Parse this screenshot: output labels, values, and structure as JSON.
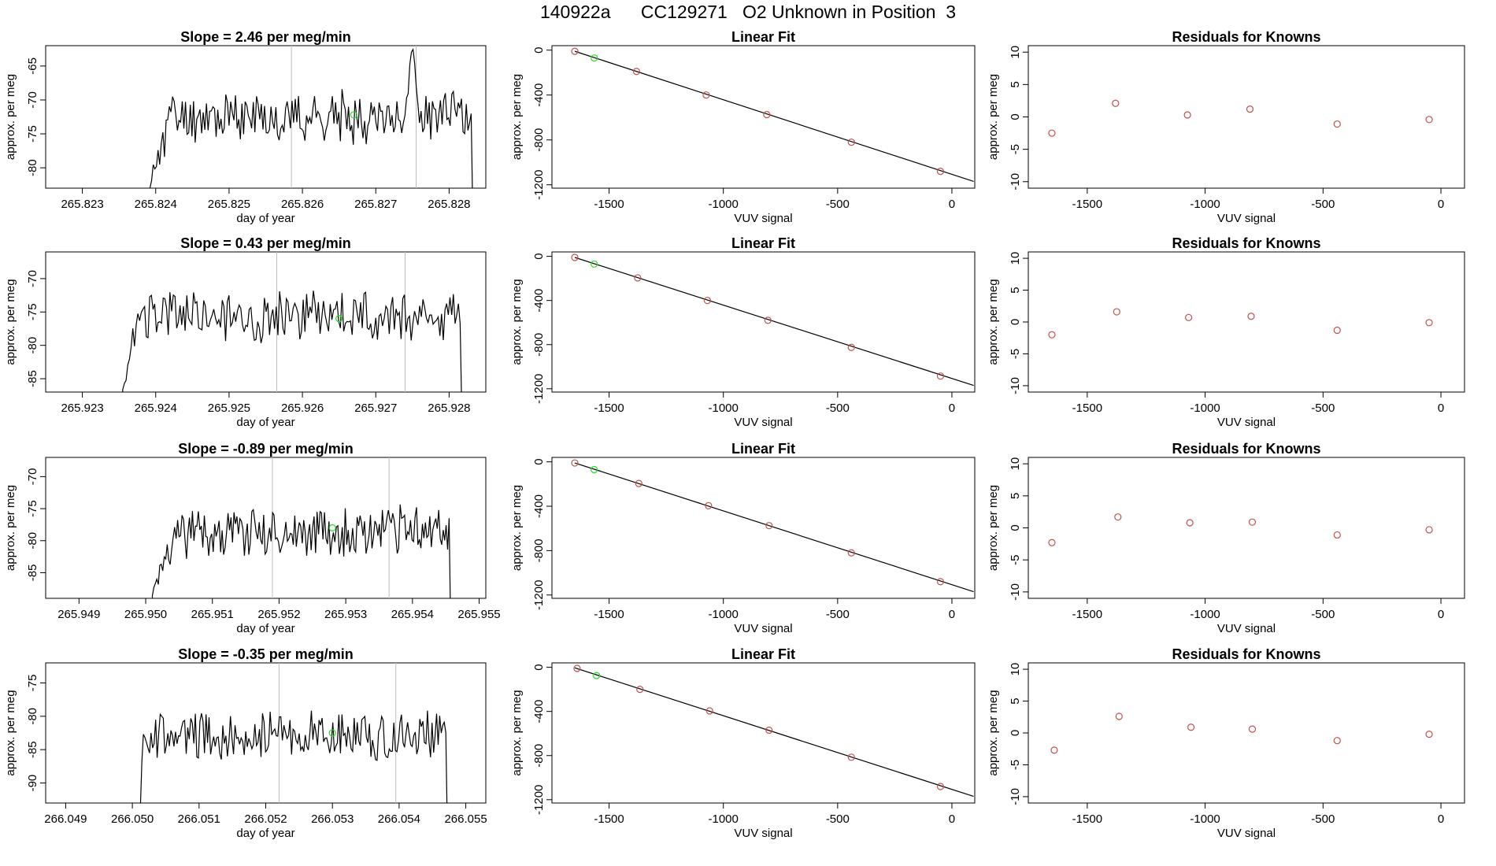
{
  "page": {
    "title_run": "140922a",
    "title_id": "CC129271",
    "title_desc": "O2 Unknown in Position  3"
  },
  "colors": {
    "line": "#000000",
    "guide": "#bdbdbd",
    "green": "#22dd22",
    "red": "#c0504d",
    "axis": "#000000"
  },
  "chart_data": [
    {
      "type": "line",
      "row": 1,
      "panel": "time_series",
      "title": "Slope =  2.46  per meg/min",
      "xlabel": "day of year",
      "ylabel": "approx. per meg",
      "xlim": [
        265.8225,
        265.8285
      ],
      "ylim": [
        -83,
        -62
      ],
      "xticks": [
        265.823,
        265.824,
        265.825,
        265.826,
        265.827,
        265.828
      ],
      "xtick_labels": [
        "265.823",
        "265.824",
        "265.825",
        "265.826",
        "265.827",
        "265.828"
      ],
      "yticks": [
        -80,
        -75,
        -70,
        -65
      ],
      "ytick_labels": [
        "-80",
        "-75",
        "-70",
        "-65"
      ],
      "vlines": [
        265.82585,
        265.82755
      ],
      "x_start": 265.8239,
      "x_end": 265.8283,
      "ramp_points": 14,
      "base": -72.5,
      "amp": 3.2,
      "seed": 11,
      "peak": {
        "x": 265.8275,
        "y": -62
      },
      "marker": {
        "x": 265.8267,
        "y": -72.2
      }
    },
    {
      "type": "scatter",
      "row": 1,
      "panel": "linear_fit",
      "title": "Linear Fit",
      "xlabel": "VUV signal",
      "ylabel": "approx. per meg",
      "xlim": [
        -1750,
        100
      ],
      "ylim": [
        -1230,
        40
      ],
      "xticks": [
        -1500,
        -1000,
        -500,
        0
      ],
      "xtick_labels": [
        "-1500",
        "-1000",
        "-500",
        "0"
      ],
      "yticks": [
        0,
        -400,
        -800,
        -1200
      ],
      "ytick_labels": [
        "0",
        "-400",
        "-800",
        "-1200"
      ],
      "known_x": [
        -1650,
        -1380,
        -1075,
        -810,
        -440,
        -50
      ],
      "known_y": [
        -10,
        -190,
        -400,
        -575,
        -820,
        -1080
      ],
      "unknown_x": [
        -1565
      ],
      "unknown_y": [
        -70
      ],
      "fit_line": {
        "x": [
          -1650,
          95
        ],
        "y": [
          -10,
          -1170
        ]
      }
    },
    {
      "type": "scatter",
      "row": 1,
      "panel": "residuals",
      "title": "Residuals for Knowns",
      "xlabel": "VUV signal",
      "ylabel": "approx. per meg",
      "xlim": [
        -1750,
        100
      ],
      "ylim": [
        -11,
        11
      ],
      "xticks": [
        -1500,
        -1000,
        -500,
        0
      ],
      "xtick_labels": [
        "-1500",
        "-1000",
        "-500",
        "0"
      ],
      "yticks": [
        10,
        5,
        0,
        -5,
        -10
      ],
      "ytick_labels": [
        "10",
        "5",
        "0",
        "-5",
        "-10"
      ],
      "x": [
        -1650,
        -1380,
        -1075,
        -810,
        -440,
        -50
      ],
      "y": [
        -2.5,
        2.1,
        0.3,
        1.2,
        -1.1,
        -0.4
      ]
    },
    {
      "type": "line",
      "row": 2,
      "panel": "time_series",
      "title": "Slope =  0.43  per meg/min",
      "xlabel": "day of year",
      "ylabel": "approx. per meg",
      "xlim": [
        265.9225,
        265.9285
      ],
      "ylim": [
        -87,
        -66
      ],
      "xticks": [
        265.923,
        265.924,
        265.925,
        265.926,
        265.927,
        265.928
      ],
      "xtick_labels": [
        "265.923",
        "265.924",
        "265.925",
        "265.926",
        "265.927",
        "265.928"
      ],
      "yticks": [
        -85,
        -80,
        -75,
        -70
      ],
      "ytick_labels": [
        "-85",
        "-80",
        "-75",
        "-70"
      ],
      "vlines": [
        265.92565,
        265.9274
      ],
      "x_start": 265.92355,
      "x_end": 265.92815,
      "ramp_points": 10,
      "base": -75.5,
      "amp": 3.4,
      "seed": 23,
      "peak": null,
      "marker": {
        "x": 265.9265,
        "y": -76
      }
    },
    {
      "type": "scatter",
      "row": 2,
      "panel": "linear_fit",
      "title": "Linear Fit",
      "xlabel": "VUV signal",
      "ylabel": "approx. per meg",
      "xlim": [
        -1750,
        100
      ],
      "ylim": [
        -1230,
        40
      ],
      "xticks": [
        -1500,
        -1000,
        -500,
        0
      ],
      "xtick_labels": [
        "-1500",
        "-1000",
        "-500",
        "0"
      ],
      "yticks": [
        0,
        -400,
        -800,
        -1200
      ],
      "ytick_labels": [
        "0",
        "-400",
        "-800",
        "-1200"
      ],
      "known_x": [
        -1650,
        -1375,
        -1070,
        -805,
        -440,
        -50
      ],
      "known_y": [
        -10,
        -195,
        -400,
        -580,
        -825,
        -1085
      ],
      "unknown_x": [
        -1565
      ],
      "unknown_y": [
        -70
      ],
      "fit_line": {
        "x": [
          -1650,
          95
        ],
        "y": [
          -10,
          -1170
        ]
      }
    },
    {
      "type": "scatter",
      "row": 2,
      "panel": "residuals",
      "title": "Residuals for Knowns",
      "xlabel": "VUV signal",
      "ylabel": "approx. per meg",
      "xlim": [
        -1750,
        100
      ],
      "ylim": [
        -11,
        11
      ],
      "xticks": [
        -1500,
        -1000,
        -500,
        0
      ],
      "xtick_labels": [
        "-1500",
        "-1000",
        "-500",
        "0"
      ],
      "yticks": [
        10,
        5,
        0,
        -5,
        -10
      ],
      "ytick_labels": [
        "10",
        "5",
        "0",
        "-5",
        "-10"
      ],
      "x": [
        -1650,
        -1375,
        -1070,
        -805,
        -440,
        -50
      ],
      "y": [
        -2.0,
        1.6,
        0.7,
        0.9,
        -1.3,
        -0.1
      ]
    },
    {
      "type": "line",
      "row": 3,
      "panel": "time_series",
      "title": "Slope =  -0.89  per meg/min",
      "xlabel": "day of year",
      "ylabel": "approx. per meg",
      "xlim": [
        265.9485,
        265.9551
      ],
      "ylim": [
        -89,
        -67
      ],
      "xticks": [
        265.949,
        265.95,
        265.951,
        265.952,
        265.953,
        265.954,
        265.955
      ],
      "xtick_labels": [
        "265.949",
        "265.950",
        "265.951",
        "265.952",
        "265.953",
        "265.954",
        "265.955"
      ],
      "yticks": [
        -85,
        -80,
        -75,
        -70
      ],
      "ytick_labels": [
        "-85",
        "-80",
        "-75",
        "-70"
      ],
      "vlines": [
        265.9519,
        265.95365
      ],
      "x_start": 265.9501,
      "x_end": 265.95455,
      "ramp_points": 16,
      "base": -78.5,
      "amp": 3.6,
      "seed": 37,
      "peak": null,
      "marker": {
        "x": 265.9528,
        "y": -78
      }
    },
    {
      "type": "scatter",
      "row": 3,
      "panel": "linear_fit",
      "title": "Linear Fit",
      "xlabel": "VUV signal",
      "ylabel": "approx. per meg",
      "xlim": [
        -1750,
        100
      ],
      "ylim": [
        -1230,
        40
      ],
      "xticks": [
        -1500,
        -1000,
        -500,
        0
      ],
      "xtick_labels": [
        "-1500",
        "-1000",
        "-500",
        "0"
      ],
      "yticks": [
        0,
        -400,
        -800,
        -1200
      ],
      "ytick_labels": [
        "0",
        "-400",
        "-800",
        "-1200"
      ],
      "known_x": [
        -1650,
        -1370,
        -1065,
        -800,
        -440,
        -50
      ],
      "known_y": [
        -10,
        -195,
        -395,
        -575,
        -820,
        -1080
      ],
      "unknown_x": [
        -1565
      ],
      "unknown_y": [
        -70
      ],
      "fit_line": {
        "x": [
          -1650,
          95
        ],
        "y": [
          -10,
          -1170
        ]
      }
    },
    {
      "type": "scatter",
      "row": 3,
      "panel": "residuals",
      "title": "Residuals for Knowns",
      "xlabel": "VUV signal",
      "ylabel": "approx. per meg",
      "xlim": [
        -1750,
        100
      ],
      "ylim": [
        -11,
        11
      ],
      "xticks": [
        -1500,
        -1000,
        -500,
        0
      ],
      "xtick_labels": [
        "-1500",
        "-1000",
        "-500",
        "0"
      ],
      "yticks": [
        10,
        5,
        0,
        -5,
        -10
      ],
      "ytick_labels": [
        "10",
        "5",
        "0",
        "-5",
        "-10"
      ],
      "x": [
        -1650,
        -1370,
        -1065,
        -800,
        -440,
        -50
      ],
      "y": [
        -2.3,
        1.7,
        0.8,
        0.9,
        -1.1,
        -0.3
      ]
    },
    {
      "type": "line",
      "row": 4,
      "panel": "time_series",
      "title": "Slope =  -0.35  per meg/min",
      "xlabel": "day of year",
      "ylabel": "approx. per meg",
      "xlim": [
        266.0487,
        266.0553
      ],
      "ylim": [
        -93,
        -72
      ],
      "xticks": [
        266.049,
        266.05,
        266.051,
        266.052,
        266.053,
        266.054,
        266.055
      ],
      "xtick_labels": [
        "266.049",
        "266.050",
        "266.051",
        "266.052",
        "266.053",
        "266.054",
        "266.055"
      ],
      "yticks": [
        -90,
        -85,
        -80,
        -75
      ],
      "ytick_labels": [
        "-90",
        "-85",
        "-80",
        "-75"
      ],
      "vlines": [
        266.0522,
        266.05395
      ],
      "x_start": 266.05012,
      "x_end": 266.0547,
      "ramp_points": 2,
      "base": -83,
      "amp": 3.2,
      "seed": 53,
      "peak": null,
      "marker": {
        "x": 266.053,
        "y": -82.5
      }
    },
    {
      "type": "scatter",
      "row": 4,
      "panel": "linear_fit",
      "title": "Linear Fit",
      "xlabel": "VUV signal",
      "ylabel": "approx. per meg",
      "xlim": [
        -1750,
        100
      ],
      "ylim": [
        -1230,
        40
      ],
      "xticks": [
        -1500,
        -1000,
        -500,
        0
      ],
      "xtick_labels": [
        "-1500",
        "-1000",
        "-500",
        "0"
      ],
      "yticks": [
        0,
        -400,
        -800,
        -1200
      ],
      "ytick_labels": [
        "0",
        "-400",
        "-800",
        "-1200"
      ],
      "known_x": [
        -1640,
        -1365,
        -1060,
        -800,
        -440,
        -50
      ],
      "known_y": [
        -10,
        -200,
        -395,
        -570,
        -815,
        -1080
      ],
      "unknown_x": [
        -1555
      ],
      "unknown_y": [
        -75
      ],
      "fit_line": {
        "x": [
          -1650,
          95
        ],
        "y": [
          -5,
          -1170
        ]
      }
    },
    {
      "type": "scatter",
      "row": 4,
      "panel": "residuals",
      "title": "Residuals for Knowns",
      "xlabel": "VUV signal",
      "ylabel": "approx. per meg",
      "xlim": [
        -1750,
        100
      ],
      "ylim": [
        -11,
        11
      ],
      "xticks": [
        -1500,
        -1000,
        -500,
        0
      ],
      "xtick_labels": [
        "-1500",
        "-1000",
        "-500",
        "0"
      ],
      "yticks": [
        10,
        5,
        0,
        -5,
        -10
      ],
      "ytick_labels": [
        "10",
        "5",
        "0",
        "-5",
        "-10"
      ],
      "x": [
        -1640,
        -1365,
        -1060,
        -800,
        -440,
        -50
      ],
      "y": [
        -2.7,
        2.6,
        0.9,
        0.6,
        -1.2,
        -0.2
      ]
    }
  ]
}
